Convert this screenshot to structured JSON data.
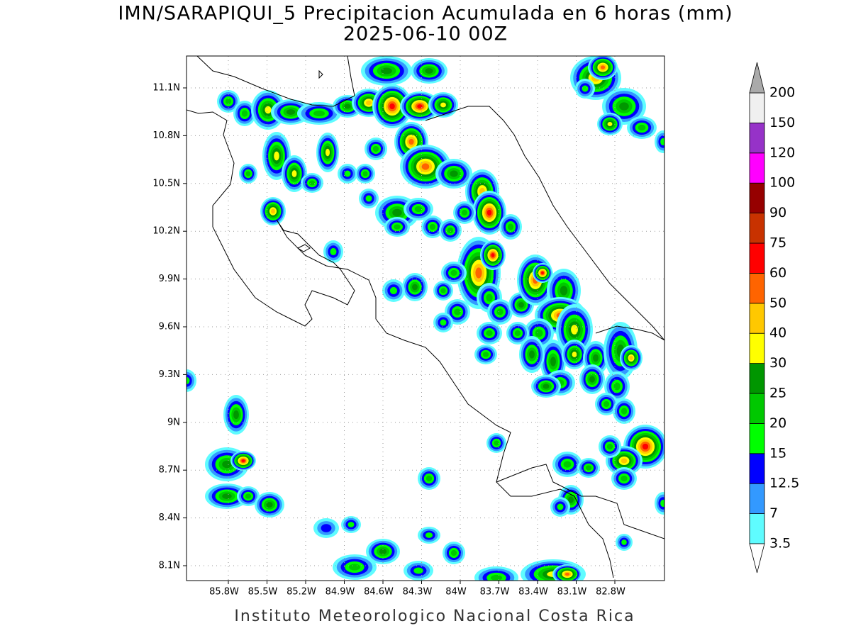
{
  "title": "IMN/SARAPIQUI_5 Precipitacion Acumulada en 6 horas (mm)",
  "subtitle": "2025-06-10 00Z",
  "map": {
    "lat_ticks": [
      "11.1N",
      "10.8N",
      "10.5N",
      "10.2N",
      "9.9N",
      "9.6N",
      "9.3N",
      "9N",
      "8.7N",
      "8.4N",
      "8.1N"
    ],
    "lon_ticks": [
      "85.8W",
      "85.5W",
      "85.2W",
      "84.9W",
      "84.6W",
      "84.3W",
      "84W",
      "83.7W",
      "83.4W",
      "83.1W",
      "82.8W"
    ]
  },
  "colorbar": {
    "levels": [
      3.5,
      7,
      12.5,
      15,
      20,
      25,
      30,
      40,
      50,
      60,
      75,
      90,
      100,
      120,
      150,
      200
    ],
    "colors": [
      "#5ffcff",
      "#3399ff",
      "#0000ff",
      "#00ff00",
      "#00c800",
      "#009600",
      "#ffff00",
      "#ffc800",
      "#ff6400",
      "#ff0000",
      "#c83200",
      "#960000",
      "#ff00ff",
      "#9632c8",
      "#f0f0f0"
    ],
    "over_color": "#aaaaaa",
    "under_color": "#ffffff"
  },
  "footer": "Instituto Meteorologico Nacional Costa Rica"
}
